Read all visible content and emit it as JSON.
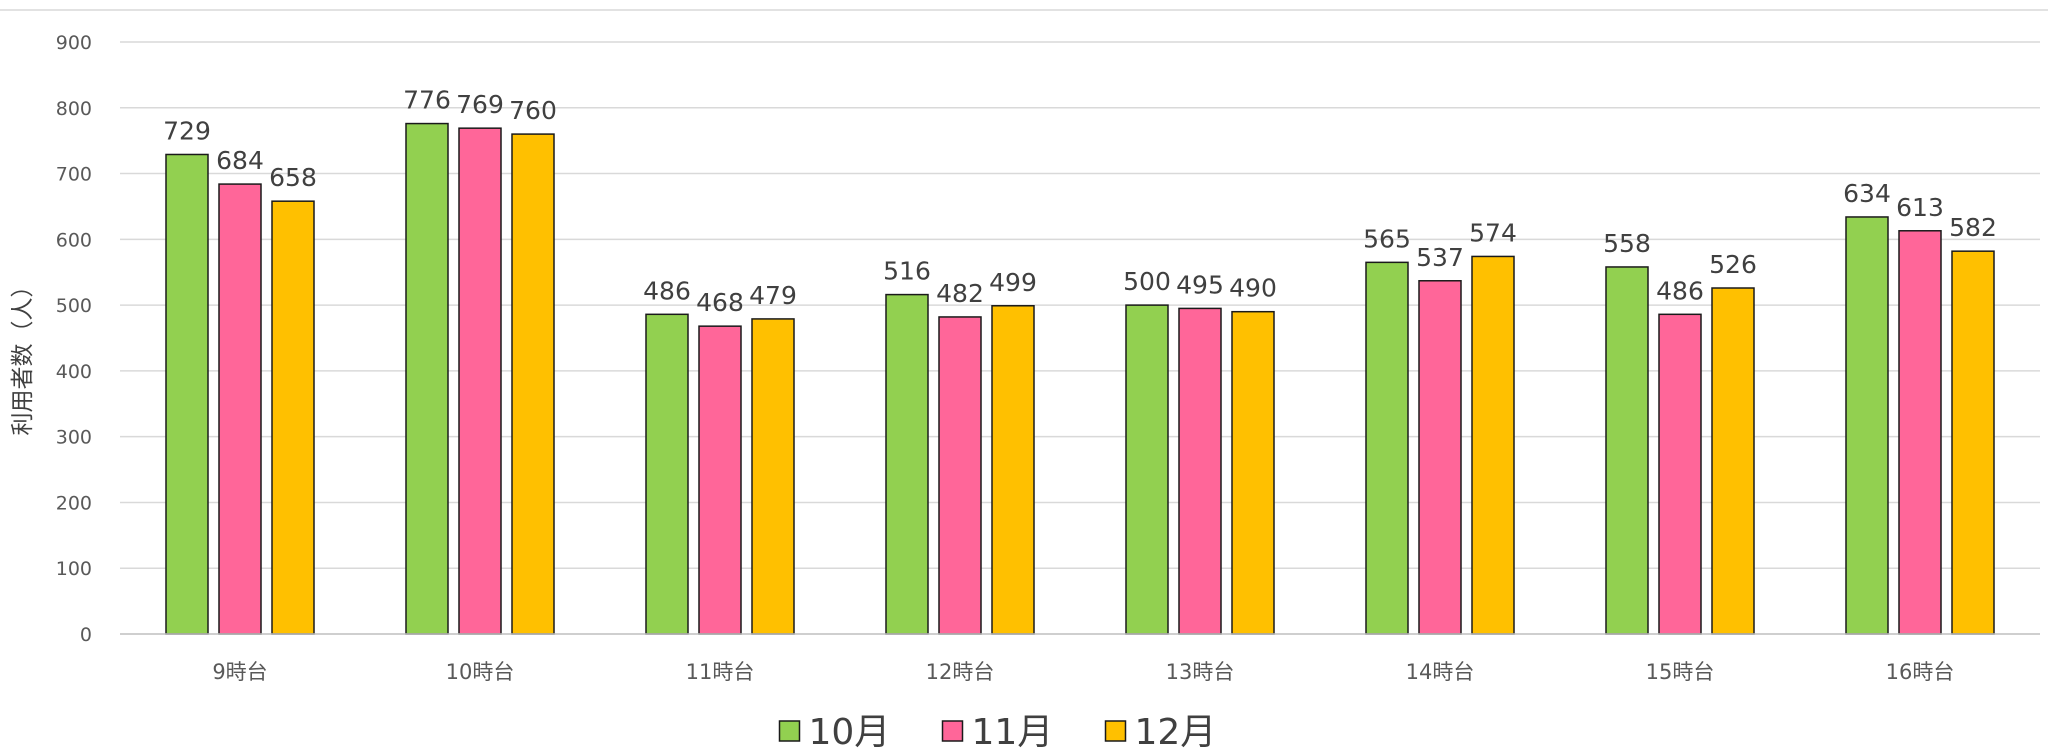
{
  "chart_data": {
    "type": "bar",
    "ylabel": "利用者数（人）",
    "xlabel": "",
    "ylim": [
      0,
      900
    ],
    "yticks": [
      0,
      100,
      200,
      300,
      400,
      500,
      600,
      700,
      800,
      900
    ],
    "grid": true,
    "legend_position": "bottom",
    "categories": [
      "9時台",
      "10時台",
      "11時台",
      "12時台",
      "13時台",
      "14時台",
      "15時台",
      "16時台"
    ],
    "series": [
      {
        "name": "10月",
        "color": "#92d050",
        "values": [
          729,
          776,
          486,
          516,
          500,
          565,
          558,
          634
        ]
      },
      {
        "name": "11月",
        "color": "#ff6699",
        "values": [
          684,
          769,
          468,
          482,
          495,
          537,
          486,
          613
        ]
      },
      {
        "name": "12月",
        "color": "#ffc000",
        "values": [
          658,
          760,
          479,
          499,
          490,
          574,
          526,
          582
        ]
      }
    ]
  }
}
